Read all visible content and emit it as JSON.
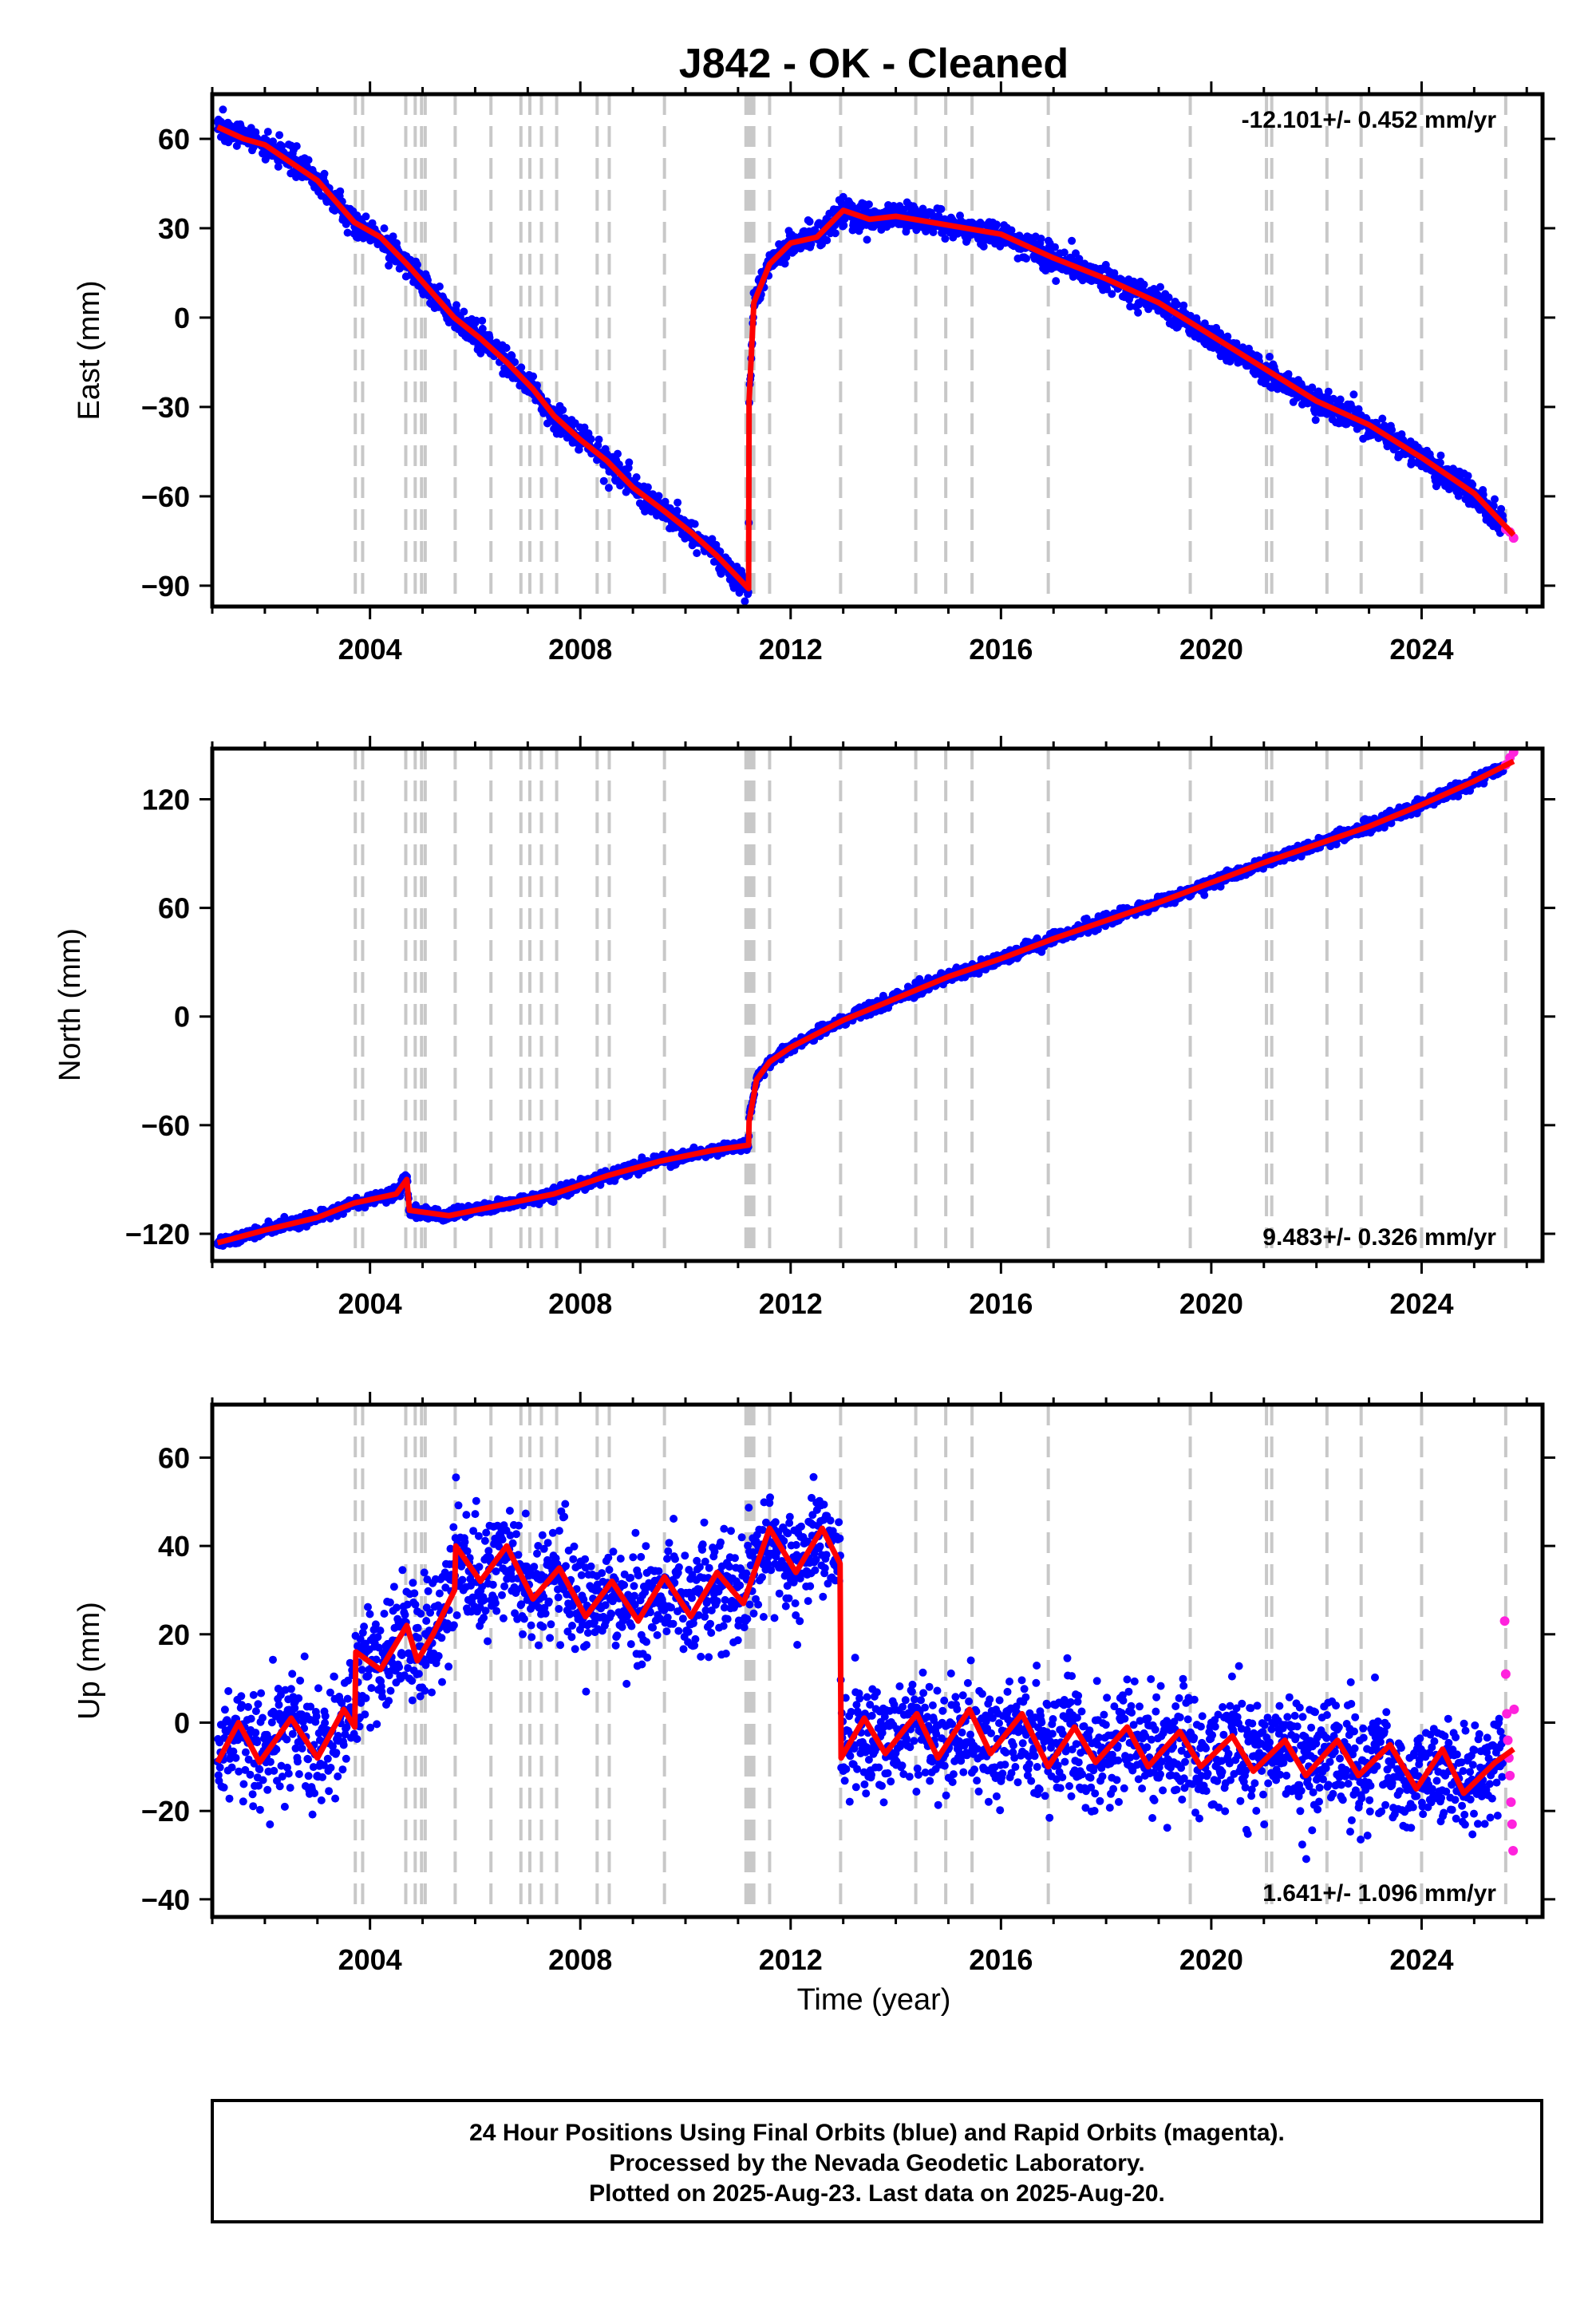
{
  "chart_data": {
    "type": "scatter",
    "title": "J842  - OK - Cleaned",
    "xlabel": "Time (year)",
    "xlim": [
      2001,
      2026.3
    ],
    "xticks": [
      2004,
      2008,
      2012,
      2016,
      2020,
      2024
    ],
    "colors": {
      "final": "#0000ff",
      "rapid": "#ff22dd",
      "model": "#ff0000",
      "event": "#c8c8c8"
    },
    "events": [
      2003.72,
      2003.86,
      2004.68,
      2004.86,
      2004.98,
      2005.05,
      2005.62,
      2006.3,
      2006.87,
      2007.04,
      2007.26,
      2007.55,
      2008.32,
      2008.55,
      2009.6,
      2011.15,
      2011.2,
      2011.25,
      2011.3,
      2011.6,
      2012.95,
      2014.38,
      2014.95,
      2015.45,
      2016.9,
      2019.6,
      2021.05,
      2021.15,
      2022.2,
      2022.85,
      2024.0,
      2025.6
    ],
    "panels": [
      {
        "key": "east",
        "ylabel": "East (mm)",
        "ylim": [
          -97,
          75
        ],
        "yticks": [
          60,
          30,
          0,
          -30,
          -60,
          -90
        ],
        "rate": "-12.101+/- 0.452 mm/yr",
        "rate_pos": "top-right",
        "noise": 2.2,
        "series": [
          {
            "name": "final",
            "x": [
              2001.1,
              2002.0,
              2003.0,
              2003.7,
              2004.7,
              2005.6,
              2006.6,
              2007.5,
              2008.5,
              2009.6,
              2010.6,
              2011.2,
              2011.21,
              2011.3,
              2011.6,
              2012.0,
              2013.0,
              2014.0,
              2015.0,
              2016.0,
              2017.0,
              2018.0,
              2019.0,
              2020.0,
              2021.0,
              2022.0,
              2023.0,
              2024.0,
              2025.0,
              2025.55
            ],
            "y": [
              65,
              58,
              47,
              32,
              18,
              0,
              -15,
              -33,
              -48,
              -65,
              -80,
              -93,
              -30,
              5,
              18,
              25,
              35,
              34,
              31,
              27,
              20,
              13,
              5,
              -7,
              -18,
              -28,
              -37,
              -47,
              -60,
              -70
            ]
          },
          {
            "name": "rapid",
            "x": [
              2025.6,
              2025.68,
              2025.75
            ],
            "y": [
              -71,
              -72,
              -74
            ]
          }
        ],
        "model": {
          "x": [
            2001.1,
            2001.6,
            2002.0,
            2002.5,
            2003.0,
            2003.7,
            2004.2,
            2004.7,
            2005.2,
            2005.6,
            2006.1,
            2006.6,
            2007.1,
            2007.5,
            2008.0,
            2008.5,
            2009.0,
            2009.6,
            2010.1,
            2010.6,
            2011.2,
            2011.21,
            2011.3,
            2011.6,
            2012.0,
            2012.5,
            2013.0,
            2013.5,
            2014.0,
            2015.0,
            2016.0,
            2016.5,
            2017.0,
            2018.0,
            2019.0,
            2020.0,
            2021.0,
            2022.0,
            2023.0,
            2024.0,
            2025.0,
            2025.75
          ],
          "y": [
            64,
            60,
            58,
            52,
            46,
            32,
            27,
            18,
            8,
            0,
            -7,
            -15,
            -24,
            -33,
            -41,
            -48,
            -57,
            -65,
            -72,
            -80,
            -91,
            -28,
            5,
            18,
            25,
            27,
            36,
            33,
            34,
            31,
            28,
            24,
            20,
            13,
            5,
            -6,
            -17,
            -28,
            -36,
            -47,
            -59,
            -73
          ]
        }
      },
      {
        "key": "north",
        "ylabel": "North (mm)",
        "ylim": [
          -135,
          148
        ],
        "yticks": [
          120,
          60,
          0,
          -60,
          -120
        ],
        "rate": "9.483+/- 0.326 mm/yr",
        "rate_pos": "bottom-right",
        "noise": 1.6,
        "series": [
          {
            "name": "final",
            "x": [
              2001.1,
              2002.0,
              2003.0,
              2003.7,
              2004.5,
              2004.7,
              2004.75,
              2005.5,
              2006.5,
              2007.5,
              2008.5,
              2009.5,
              2010.5,
              2011.2,
              2011.21,
              2011.35,
              2011.6,
              2012.0,
              2013.0,
              2014.0,
              2015.0,
              2016.0,
              2017.0,
              2018.0,
              2019.0,
              2020.0,
              2021.0,
              2022.0,
              2023.0,
              2024.0,
              2025.0,
              2025.55
            ],
            "y": [
              -125,
              -117,
              -111,
              -103,
              -97,
              -88,
              -108,
              -110,
              -104,
              -98,
              -88,
              -80,
              -74,
              -71,
              -55,
              -35,
              -25,
              -17,
              -2,
              10,
              22,
              32,
              43,
              53,
              63,
              74,
              85,
              95,
              105,
              117,
              130,
              137
            ]
          },
          {
            "name": "rapid",
            "x": [
              2025.6,
              2025.68,
              2025.75
            ],
            "y": [
              139,
              143,
              146
            ]
          }
        ],
        "model": {
          "x": [
            2001.1,
            2002.0,
            2003.0,
            2003.7,
            2004.5,
            2004.7,
            2004.75,
            2005.5,
            2006.5,
            2007.5,
            2008.5,
            2009.5,
            2010.5,
            2011.2,
            2011.21,
            2011.35,
            2011.6,
            2012.0,
            2013.0,
            2014.0,
            2015.0,
            2016.0,
            2017.0,
            2018.0,
            2019.0,
            2020.0,
            2021.0,
            2022.0,
            2023.0,
            2024.0,
            2025.0,
            2025.75
          ],
          "y": [
            -125,
            -118,
            -111,
            -103,
            -98,
            -90,
            -107,
            -110,
            -104,
            -98,
            -88,
            -80,
            -74,
            -71,
            -58,
            -35,
            -25,
            -17,
            -2,
            10,
            22,
            32,
            43,
            53,
            63,
            74,
            85,
            95,
            105,
            117,
            130,
            141
          ]
        }
      },
      {
        "key": "up",
        "ylabel": "Up (mm)",
        "ylim": [
          -44,
          72
        ],
        "yticks": [
          60,
          40,
          20,
          0,
          -20,
          -40
        ],
        "rate": "1.641+/- 1.096 mm/yr",
        "rate_pos": "bottom-right",
        "noise": 6.5,
        "series": [
          {
            "name": "final",
            "x": [
              2001.1,
              2001.5,
              2002.0,
              2002.6,
              2003.0,
              2003.55,
              2003.6,
              2003.72,
              2003.8,
              2004.5,
              2004.7,
              2005.0,
              2005.5,
              2005.62,
              2006.0,
              2006.7,
              2007.0,
              2007.5,
              2008.0,
              2008.5,
              2009.0,
              2009.5,
              2010.0,
              2010.5,
              2011.0,
              2011.5,
              2012.0,
              2012.5,
              2012.94,
              2012.96,
              2013.5,
              2014.5,
              2015.5,
              2016.5,
              2017.5,
              2018.5,
              2019.5,
              2020.5,
              2021.5,
              2022.5,
              2023.5,
              2024.5,
              2025.0,
              2025.55
            ],
            "y": [
              -8,
              -2,
              -6,
              -1,
              -7,
              -4,
              15,
              3,
              10,
              17,
              22,
              18,
              30,
              38,
              32,
              38,
              30,
              32,
              28,
              31,
              26,
              30,
              27,
              30,
              32,
              39,
              36,
              40,
              35,
              -7,
              -3,
              -2,
              -4,
              -2,
              -5,
              -6,
              -6,
              -7,
              -8,
              -9,
              -10,
              -12,
              -13,
              -8
            ]
          },
          {
            "name": "rapid",
            "x": [
              2025.58,
              2025.6,
              2025.62,
              2025.64,
              2025.66,
              2025.68,
              2025.7,
              2025.72,
              2025.74,
              2025.76
            ],
            "y": [
              23,
              11,
              2,
              -4,
              -8,
              -12,
              -18,
              -23,
              -29,
              3
            ]
          }
        ],
        "model": {
          "x": [
            2001.1,
            2001.5,
            2001.9,
            2002.5,
            2003.0,
            2003.5,
            2003.71,
            2003.73,
            2004.2,
            2004.7,
            2004.9,
            2005.2,
            2005.61,
            2005.63,
            2006.1,
            2006.6,
            2007.1,
            2007.6,
            2008.1,
            2008.6,
            2009.1,
            2009.6,
            2010.1,
            2010.6,
            2011.1,
            2011.6,
            2012.1,
            2012.6,
            2012.94,
            2012.96,
            2013.4,
            2013.8,
            2014.4,
            2014.8,
            2015.4,
            2015.8,
            2016.4,
            2016.9,
            2017.4,
            2017.8,
            2018.4,
            2018.8,
            2019.4,
            2019.8,
            2020.4,
            2020.8,
            2021.4,
            2021.8,
            2022.4,
            2022.8,
            2023.4,
            2023.9,
            2024.4,
            2024.8,
            2025.4,
            2025.75
          ],
          "y": [
            -9,
            0,
            -9,
            1,
            -8,
            3,
            -1,
            16,
            12,
            22,
            14,
            20,
            30,
            40,
            32,
            40,
            28,
            35,
            24,
            32,
            23,
            33,
            24,
            34,
            27,
            44,
            34,
            44,
            36,
            -8,
            1,
            -7,
            2,
            -8,
            3,
            -7,
            2,
            -10,
            -1,
            -9,
            -1,
            -10,
            -2,
            -10,
            -3,
            -11,
            -4,
            -12,
            -4,
            -12,
            -5,
            -15,
            -6,
            -16,
            -9,
            -6
          ]
        }
      }
    ]
  },
  "footer": {
    "line1": "24 Hour Positions Using Final Orbits (blue) and Rapid Orbits (magenta).",
    "line2": "Processed by the Nevada Geodetic Laboratory.",
    "line3": "Plotted on 2025-Aug-23. Last data on 2025-Aug-20."
  }
}
